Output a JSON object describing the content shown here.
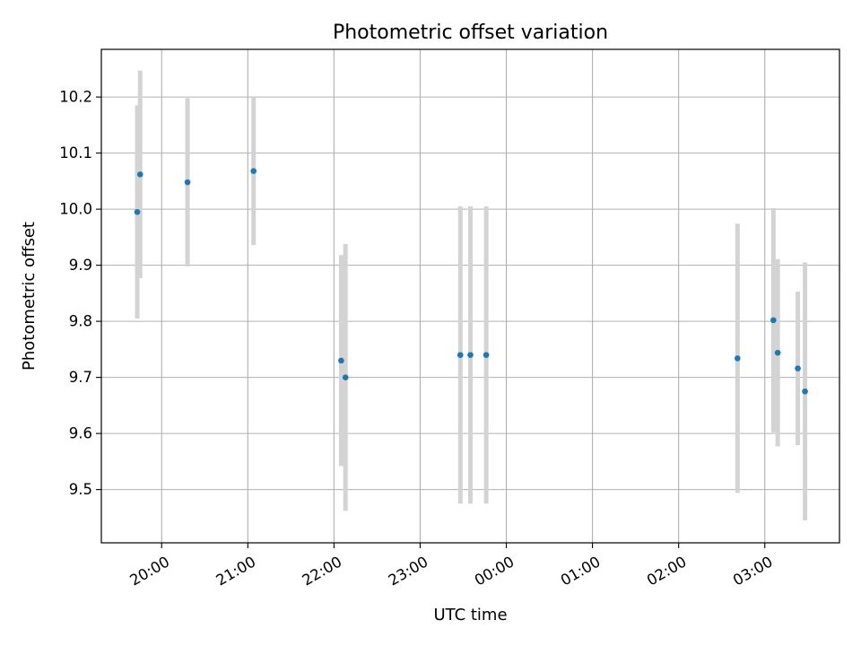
{
  "chart_data": {
    "type": "scatter",
    "title": "Photometric offset variation",
    "xlabel": "UTC time",
    "ylabel": "Photometric offset",
    "x_axis_type": "time",
    "x_ticks": [
      "2023-01-01T20:00",
      "2023-01-01T21:00",
      "2023-01-01T22:00",
      "2023-01-01T23:00",
      "2023-01-02T00:00",
      "2023-01-02T01:00",
      "2023-01-02T02:00",
      "2023-01-02T03:00"
    ],
    "x_tick_labels": [
      "20:00",
      "21:00",
      "22:00",
      "23:00",
      "00:00",
      "01:00",
      "02:00",
      "03:00"
    ],
    "xlim": [
      "2023-01-01T19:18",
      "2023-01-02T03:52"
    ],
    "ylim": [
      9.405,
      10.285
    ],
    "y_ticks": [
      9.5,
      9.6,
      9.7,
      9.8,
      9.9,
      10.0,
      10.1,
      10.2
    ],
    "y_tick_labels": [
      "9.5",
      "9.6",
      "9.7",
      "9.8",
      "9.9",
      "10.0",
      "10.1",
      "10.2"
    ],
    "grid": true,
    "marker_color": "#1f77b4",
    "errorbar_color": "#d3d3d3",
    "series": [
      {
        "points": [
          {
            "x": "2023-01-01T19:43",
            "y": 9.995,
            "err": 0.19
          },
          {
            "x": "2023-01-01T19:45",
            "y": 10.062,
            "err": 0.185
          },
          {
            "x": "2023-01-01T20:18",
            "y": 10.048,
            "err": 0.15
          },
          {
            "x": "2023-01-01T21:04",
            "y": 10.068,
            "err": 0.132
          },
          {
            "x": "2023-01-01T22:05",
            "y": 9.73,
            "err": 0.188
          },
          {
            "x": "2023-01-01T22:08",
            "y": 9.7,
            "err": 0.238
          },
          {
            "x": "2023-01-01T23:28",
            "y": 9.74,
            "err": 0.265
          },
          {
            "x": "2023-01-01T23:35",
            "y": 9.74,
            "err": 0.265
          },
          {
            "x": "2023-01-01T23:46",
            "y": 9.74,
            "err": 0.265
          },
          {
            "x": "2023-01-02T02:41",
            "y": 9.734,
            "err": 0.24
          },
          {
            "x": "2023-01-02T03:06",
            "y": 9.802,
            "err": 0.2
          },
          {
            "x": "2023-01-02T03:09",
            "y": 9.744,
            "err": 0.167
          },
          {
            "x": "2023-01-02T03:23",
            "y": 9.716,
            "err": 0.137
          },
          {
            "x": "2023-01-02T03:28",
            "y": 9.675,
            "err": 0.23
          }
        ]
      }
    ]
  }
}
